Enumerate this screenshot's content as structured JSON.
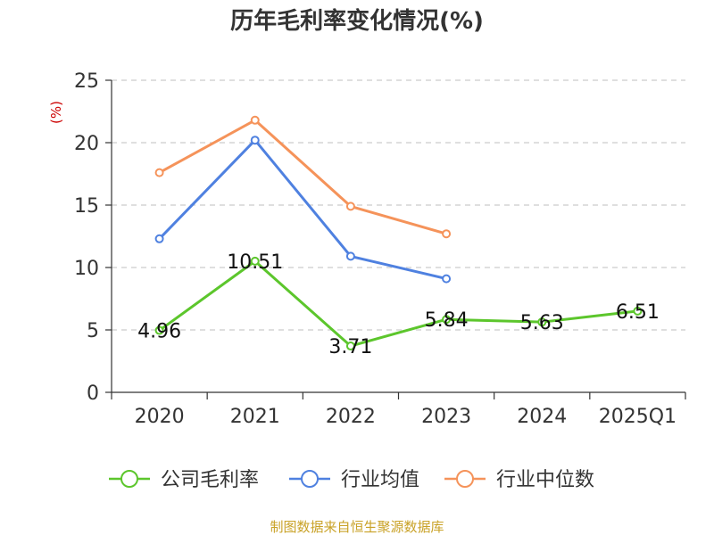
{
  "chart_data": {
    "type": "line",
    "title": "历年毛利率变化情况(%)",
    "ylabel": "(%)",
    "xlabel": "",
    "categories": [
      "2020",
      "2021",
      "2022",
      "2023",
      "2024",
      "2025Q1"
    ],
    "ylim": [
      0,
      25
    ],
    "yticks": [
      0,
      5,
      10,
      15,
      20,
      25
    ],
    "grid": true,
    "legend_position": "bottom",
    "series": [
      {
        "name": "公司毛利率",
        "color": "#5cc62c",
        "values": [
          4.96,
          10.51,
          3.71,
          5.84,
          5.63,
          6.51
        ],
        "labels": [
          "4.96",
          "10.51",
          "3.71",
          "5.84",
          "5.63",
          "6.51"
        ]
      },
      {
        "name": "行业均值",
        "color": "#4f81e0",
        "values": [
          12.3,
          20.2,
          10.9,
          9.1,
          null,
          null
        ]
      },
      {
        "name": "行业中位数",
        "color": "#f5935a",
        "values": [
          17.6,
          21.8,
          14.9,
          12.7,
          null,
          null
        ]
      }
    ]
  },
  "footer": {
    "source": "制图数据来自恒生聚源数据库"
  }
}
